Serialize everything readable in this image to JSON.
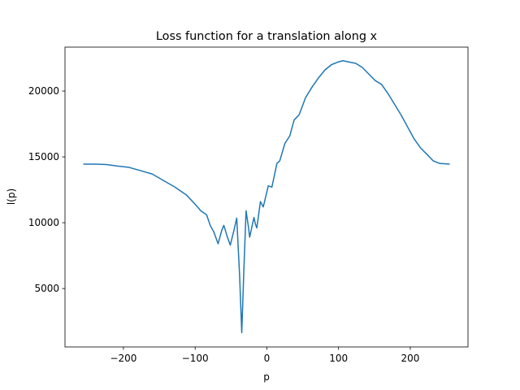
{
  "chart_data": {
    "type": "line",
    "title": "Loss function for a translation along x",
    "x_label": "p",
    "y_label": "l(p)",
    "x": [
      -256,
      -240,
      -224,
      -208,
      -192,
      -176,
      -160,
      -144,
      -128,
      -112,
      -100,
      -92,
      -84,
      -79,
      -74,
      -68,
      -63,
      -60,
      -55,
      -51,
      -46,
      -42,
      -38,
      -35,
      -32,
      -29,
      -26,
      -24,
      -20,
      -18,
      -16,
      -14,
      -11,
      -9,
      -5,
      2,
      7,
      14,
      18,
      25,
      32,
      38,
      45,
      54,
      63,
      72,
      81,
      90,
      99,
      106,
      115,
      124,
      133,
      142,
      151,
      160,
      169,
      178,
      187,
      196,
      205,
      214,
      223,
      232,
      241,
      255
    ],
    "series": [
      {
        "name": "l(p)",
        "color": "#1f77b4",
        "values": [
          14450,
          14450,
          14420,
          14300,
          14200,
          13950,
          13700,
          13200,
          12700,
          12100,
          11400,
          10900,
          10600,
          9800,
          9300,
          8400,
          9400,
          9800,
          8900,
          8300,
          9400,
          10350,
          6000,
          1650,
          6500,
          10900,
          9800,
          8900,
          9900,
          10400,
          9900,
          9600,
          10800,
          11600,
          11200,
          12800,
          12700,
          14500,
          14700,
          16000,
          16600,
          17800,
          18200,
          19500,
          20300,
          21000,
          21600,
          22000,
          22200,
          22300,
          22200,
          22100,
          21800,
          21300,
          20800,
          20500,
          19800,
          19000,
          18200,
          17300,
          16400,
          15700,
          15200,
          14700,
          14500,
          14450
        ]
      }
    ],
    "xlim": [
      -281.5,
      280.5
    ],
    "ylim": [
      565,
      23335
    ],
    "xticks": [
      {
        "value": -200,
        "label": "−200"
      },
      {
        "value": -100,
        "label": "−100"
      },
      0,
      100,
      200
    ],
    "yticks": [
      5000,
      10000,
      15000,
      20000
    ]
  }
}
